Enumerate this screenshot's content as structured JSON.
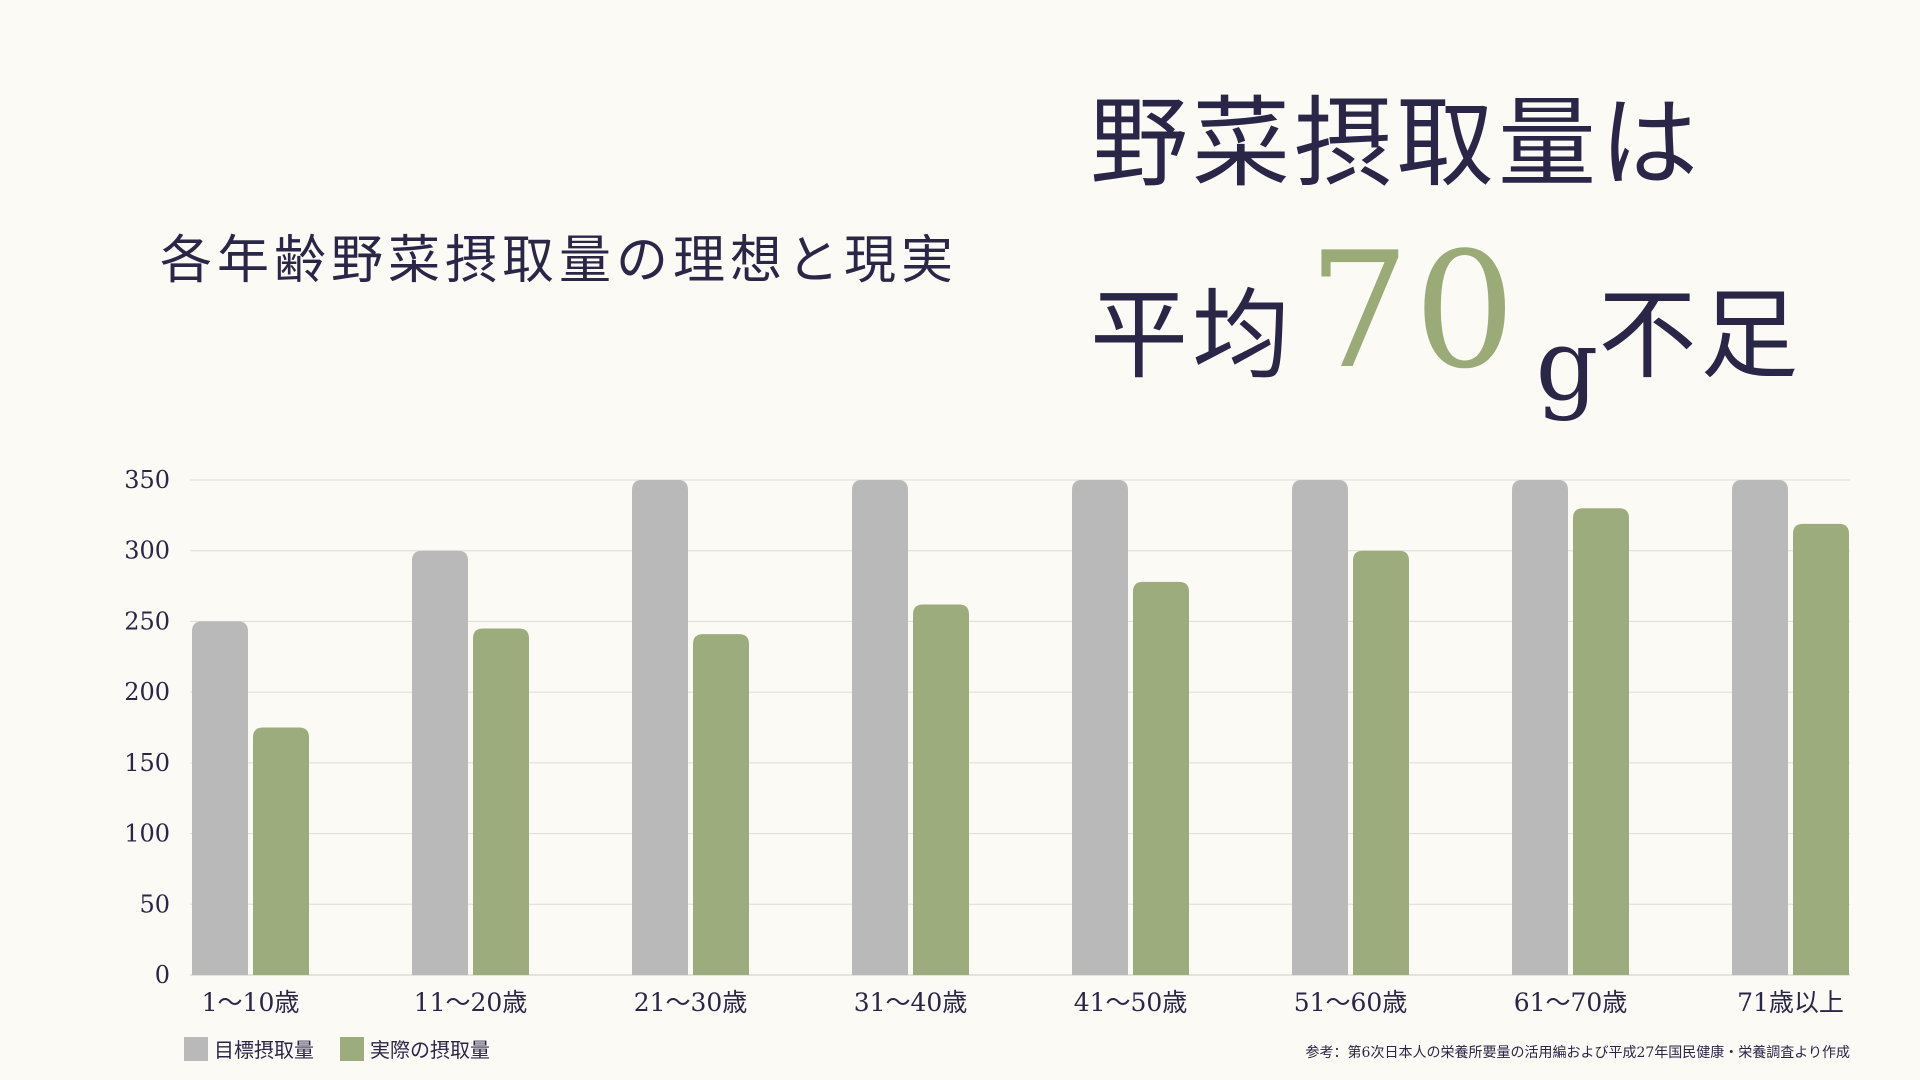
{
  "subtitle": "各年齢野菜摂取量の理想と現実",
  "headline": {
    "line1": "野菜摂取量は",
    "line2_pre": "平均",
    "line2_number": "70",
    "line2_unit": "g",
    "line2_post": "不足"
  },
  "colors": {
    "target": "#b9b9b9",
    "actual": "#9dac7c",
    "text": "#2a2647",
    "background": "#fcfaf4",
    "grid": "#dcdcd6"
  },
  "chart_data": {
    "type": "bar",
    "categories": [
      "1〜10歳",
      "11〜20歳",
      "21〜30歳",
      "31〜40歳",
      "41〜50歳",
      "51〜60歳",
      "61〜70歳",
      "71歳以上"
    ],
    "series": [
      {
        "name": "目標摂取量",
        "values": [
          250,
          300,
          350,
          350,
          350,
          350,
          350,
          350
        ]
      },
      {
        "name": "実際の摂取量",
        "values": [
          175,
          245,
          241,
          262,
          278,
          300,
          330,
          319
        ]
      }
    ],
    "yticks": [
      "350",
      "300",
      "250",
      "200",
      "150",
      "100",
      "50",
      "0"
    ],
    "ylim": [
      0,
      350
    ],
    "grid": true,
    "legend_position": "bottom-left"
  },
  "legend": {
    "target_label": "目標摂取量",
    "actual_label": "実際の摂取量"
  },
  "source_note": "参考：第6次日本人の栄養所要量の活用編および平成27年国民健康・栄養調査より作成"
}
